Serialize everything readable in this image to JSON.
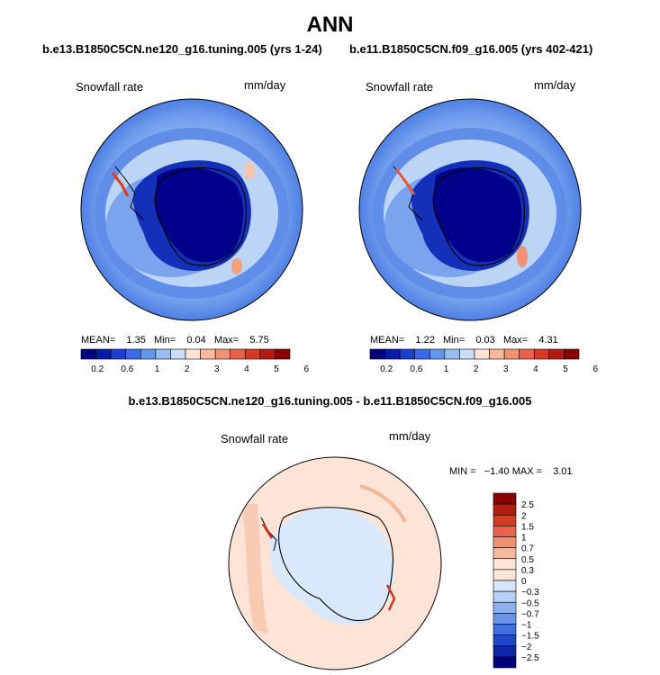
{
  "title": "ANN",
  "panels": [
    {
      "id": "left",
      "case_title": "b.e13.B1850C5CN.ne120_g16.tuning.005 (yrs 1-24)",
      "variable": "Snowfall rate",
      "units": "mm/day",
      "stats": {
        "mean": "1.35",
        "min": "0.04",
        "max": "5.75"
      },
      "stats_text": "MEAN=    1.35   Min=    0.04   Max=    5.75"
    },
    {
      "id": "right",
      "case_title": "b.e11.B1850C5CN.f09_g16.005 (yrs 402-421)",
      "variable": "Snowfall rate",
      "units": "mm/day",
      "stats": {
        "mean": "1.22",
        "min": "0.03",
        "max": "4.31"
      },
      "stats_text": "MEAN=    1.22   Min=    0.03   Max=    4.31"
    }
  ],
  "colorbar": {
    "tick_labels": [
      "0.2",
      "0.6",
      "1",
      "2",
      "3",
      "4",
      "5",
      "6"
    ],
    "colors": [
      "#00007f",
      "#0a1aa8",
      "#1d3fd0",
      "#3a6ae6",
      "#6596ee",
      "#98bdf3",
      "#c9dcf8",
      "#fde4d6",
      "#f7b89b",
      "#f29073",
      "#e8634a",
      "#d43a24",
      "#b31b12",
      "#8b0000"
    ]
  },
  "difference": {
    "title": "b.e13.B1850C5CN.ne120_g16.tuning.005 - b.e11.B1850C5CN.f09_g16.005",
    "variable": "Snowfall rate",
    "units": "mm/day",
    "stats": {
      "min": "-1.40",
      "max": "3.01"
    },
    "stats_text": "MIN =   −1.40 MAX =    3.01",
    "colorbar_labels": [
      "2.5",
      "2",
      "1.5",
      "1",
      "0.7",
      "0.5",
      "0.3",
      "0",
      "−0.3",
      "−0.5",
      "−0.7",
      "−1",
      "−1.5",
      "−2",
      "−2.5"
    ],
    "colorbar_colors": [
      "#8b0000",
      "#b31b12",
      "#d43a24",
      "#e8634a",
      "#f29073",
      "#f7b89b",
      "#fde4d6",
      "#fde4d6",
      "#d6e6f9",
      "#b7d0f5",
      "#8fb2ef",
      "#6a94e8",
      "#3f6fe0",
      "#1d47c9",
      "#0b27a3",
      "#00007f"
    ]
  }
}
